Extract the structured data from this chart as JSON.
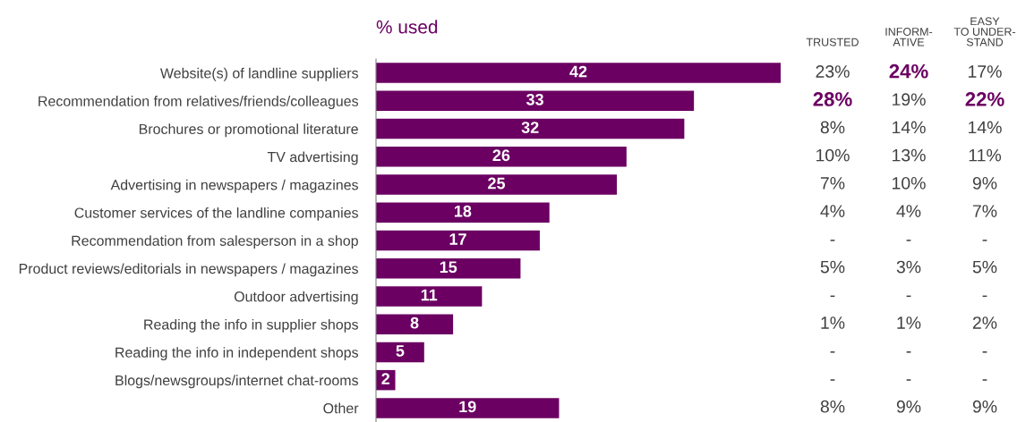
{
  "chart_data": [
    {
      "type": "bar",
      "orientation": "horizontal",
      "title": "% used",
      "data_labels": true,
      "color": "#6b0062",
      "categories": [
        "Website(s) of landline suppliers",
        "Recommendation from relatives/friends/colleagues",
        "Brochures or promotional literature",
        "TV advertising",
        "Advertising in newspapers / magazines",
        "Customer services of the landline companies",
        "Recommendation from salesperson in a shop",
        "Product reviews/editorials in newspapers / magazines",
        "Outdoor advertising",
        "Reading the info in supplier shops",
        "Reading the info in independent shops",
        "Blogs/newsgroups/internet chat-rooms",
        "Other"
      ],
      "values": [
        42,
        33,
        32,
        26,
        25,
        18,
        17,
        15,
        11,
        8,
        5,
        2,
        19
      ]
    },
    {
      "type": "other",
      "title": "TRUSTED",
      "value_labels": [
        "23%",
        "28%",
        "8%",
        "10%",
        "7%",
        "4%",
        "-",
        "5%",
        "-",
        "1%",
        "-",
        "-",
        "8%"
      ],
      "colors": [
        "#404040",
        "#6b0062",
        "#404040",
        "#404040",
        "#404040",
        "#404040",
        "#404040",
        "#404040",
        "#404040",
        "#404040",
        "#404040",
        "#404040",
        "#404040"
      ]
    },
    {
      "type": "other",
      "title": "INFORM-\nATIVE",
      "value_labels": [
        "24%",
        "19%",
        "14%",
        "13%",
        "10%",
        "4%",
        "-",
        "3%",
        "-",
        "1%",
        "-",
        "-",
        "9%"
      ],
      "colors": [
        "#6b0062",
        "#404040",
        "#404040",
        "#404040",
        "#404040",
        "#404040",
        "#404040",
        "#404040",
        "#404040",
        "#404040",
        "#404040",
        "#404040",
        "#404040"
      ]
    },
    {
      "type": "other",
      "title": "EASY\nTO UNDER-\nSTAND",
      "value_labels": [
        "17%",
        "22%",
        "14%",
        "11%",
        "9%",
        "7%",
        "-",
        "5%",
        "-",
        "2%",
        "-",
        "-",
        "9%"
      ],
      "colors": [
        "#404040",
        "#6b0062",
        "#404040",
        "#404040",
        "#404040",
        "#404040",
        "#404040",
        "#404040",
        "#404040",
        "#404040",
        "#404040",
        "#404040",
        "#404040"
      ]
    }
  ]
}
